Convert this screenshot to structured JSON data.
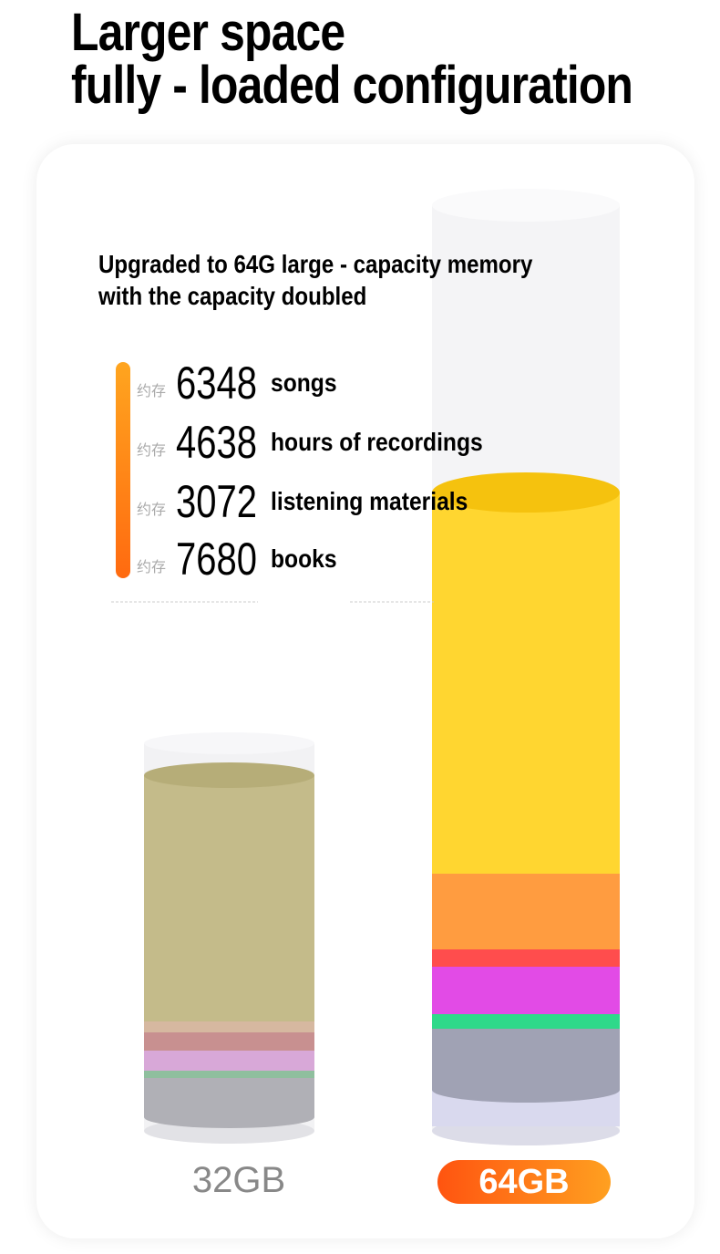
{
  "header": {
    "title": [
      "Larger space",
      "fully - loaded configuration"
    ]
  },
  "intro": [
    "Upgraded to 64G large - capacity memory",
    "with the capacity doubled"
  ],
  "stats": [
    {
      "prefix": "约存",
      "number": "6348",
      "label": "songs"
    },
    {
      "prefix": "约存",
      "number": "4638",
      "label": "hours of recordings"
    },
    {
      "prefix": "约存",
      "number": "3072",
      "label": "listening materials"
    },
    {
      "prefix": "约存",
      "number": "7680",
      "label": "books"
    }
  ],
  "capacity": {
    "small": "32GB",
    "large": "64GB"
  }
}
